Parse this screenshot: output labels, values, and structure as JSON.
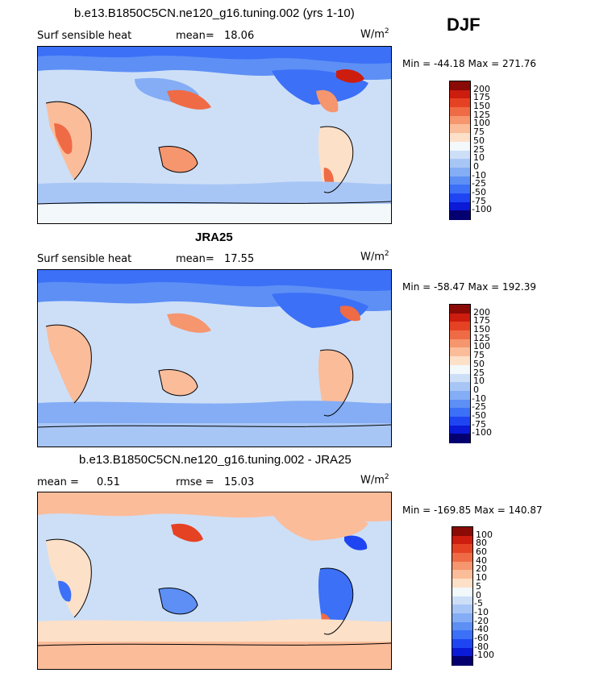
{
  "season": "DJF",
  "colors": {
    "abs": [
      "#050070",
      "#0a1ad6",
      "#1f45f2",
      "#3c70f7",
      "#5d8ff5",
      "#84adf5",
      "#a8c6f5",
      "#cddff7",
      "#f3f8fb",
      "#fde0c8",
      "#fbbc9a",
      "#f5966e",
      "#ef6b45",
      "#e54224",
      "#cc1d0f",
      "#8a0a06"
    ],
    "diff": [
      "#050070",
      "#0a1ad6",
      "#1f45f2",
      "#3c70f7",
      "#5d8ff5",
      "#84adf5",
      "#a8c6f5",
      "#cddff7",
      "#f3f8fb",
      "#fde0c8",
      "#fbbc9a",
      "#f5966e",
      "#ef6b45",
      "#e54224",
      "#cc1d0f",
      "#8a0a06"
    ]
  },
  "panels": [
    {
      "title": "b.e13.B1850C5CN.ne120_g16.tuning.002 (yrs 1-10)",
      "left_label": "Surf sensible heat",
      "stat_label": "mean=",
      "stat_value": "18.06",
      "stat2_label": "",
      "stat2_value": "",
      "units_base": "W/m",
      "units_exp": "2",
      "min_label": "Min = ",
      "min_value": "-44.18",
      "max_label": "Max = ",
      "max_value": "271.76",
      "levels": [
        "200",
        "175",
        "150",
        "125",
        "100",
        "75",
        "50",
        "25",
        "10",
        "0",
        "-10",
        "-25",
        "-50",
        "-75",
        "-100"
      ]
    },
    {
      "title": "JRA25",
      "left_label": "Surf sensible heat",
      "stat_label": "mean=",
      "stat_value": "17.55",
      "stat2_label": "",
      "stat2_value": "",
      "units_base": "W/m",
      "units_exp": "2",
      "min_label": "Min = ",
      "min_value": "-58.47",
      "max_label": "Max = ",
      "max_value": "192.39",
      "levels": [
        "200",
        "175",
        "150",
        "125",
        "100",
        "75",
        "50",
        "25",
        "10",
        "0",
        "-10",
        "-25",
        "-50",
        "-75",
        "-100"
      ]
    },
    {
      "title": "b.e13.B1850C5CN.ne120_g16.tuning.002 - JRA25",
      "left_label": "mean =",
      "stat_label": "",
      "stat_value": "0.51",
      "stat2_label": "rmse =",
      "stat2_value": "15.03",
      "units_base": "W/m",
      "units_exp": "2",
      "min_label": "Min = ",
      "min_value": "-169.85",
      "max_label": "Max = ",
      "max_value": "140.87",
      "levels": [
        "100",
        "80",
        "60",
        "40",
        "20",
        "10",
        "5",
        "0",
        "-5",
        "-10",
        "-20",
        "-40",
        "-60",
        "-80",
        "-100"
      ]
    }
  ],
  "chart_data": [
    {
      "type": "heatmap",
      "title": "b.e13.B1850C5CN.ne120_g16.tuning.002 (yrs 1-10)",
      "variable": "Surf sensible heat",
      "mean": 18.06,
      "min": -44.18,
      "max": 271.76,
      "units": "W/m2",
      "levels": [
        200,
        175,
        150,
        125,
        100,
        75,
        50,
        25,
        10,
        0,
        -10,
        -25,
        -50,
        -75,
        -100
      ]
    },
    {
      "type": "heatmap",
      "title": "JRA25",
      "variable": "Surf sensible heat",
      "mean": 17.55,
      "min": -58.47,
      "max": 192.39,
      "units": "W/m2",
      "levels": [
        200,
        175,
        150,
        125,
        100,
        75,
        50,
        25,
        10,
        0,
        -10,
        -25,
        -50,
        -75,
        -100
      ]
    },
    {
      "type": "heatmap",
      "title": "b.e13.B1850C5CN.ne120_g16.tuning.002 - JRA25",
      "mean": 0.51,
      "rmse": 15.03,
      "min": -169.85,
      "max": 140.87,
      "units": "W/m2",
      "levels": [
        100,
        80,
        60,
        40,
        20,
        10,
        5,
        0,
        -5,
        -10,
        -20,
        -40,
        -60,
        -80,
        -100
      ]
    }
  ]
}
